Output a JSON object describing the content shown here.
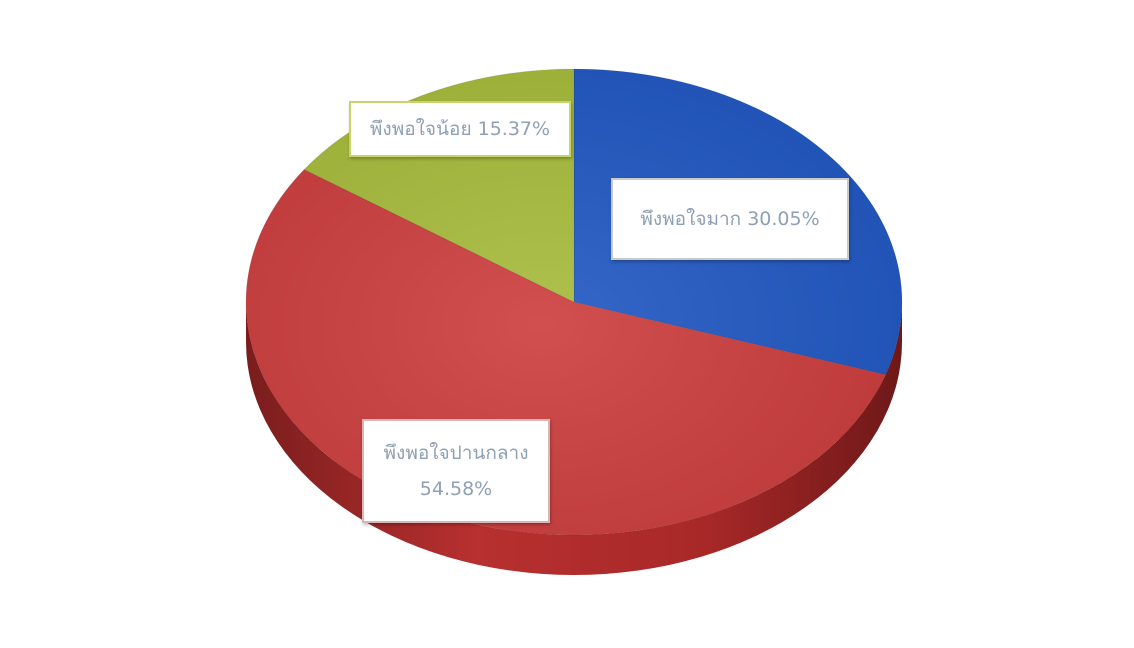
{
  "chart_data": {
    "type": "pie",
    "title": "",
    "slices": [
      {
        "label": "พึงพอใจมาก",
        "value": 30.05,
        "display": "พึงพอใจมาก 30.05%",
        "color": "#1f57c2"
      },
      {
        "label": "พึงพอใจปานกลาง",
        "value": 54.58,
        "display_line1": "พึงพอใจปานกลาง",
        "display_line2": "54.58%",
        "color": "#cc3c3c"
      },
      {
        "label": "พึงพอใจน้อย",
        "value": 15.37,
        "display": "พึงพอใจน้อย 15.37%",
        "color": "#a6bb3a"
      }
    ],
    "start_angle_deg": -90,
    "style": "3d",
    "legend": "none"
  }
}
